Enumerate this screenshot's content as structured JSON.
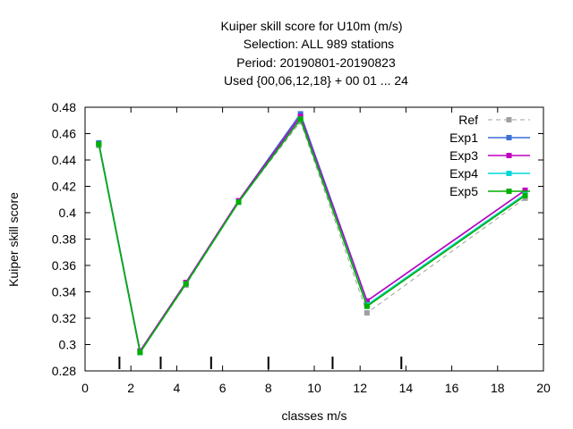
{
  "chart_data": {
    "type": "line",
    "title_lines": [
      "Kuiper skill score  for U10m (m/s)",
      "Selection: ALL     989 stations",
      "Period: 20190801-20190823",
      "Used {00,06,12,18} + 00 01 ... 24"
    ],
    "xlabel": "classes m/s",
    "ylabel": "Kuiper skill score",
    "xlim": [
      0,
      20
    ],
    "ylim": [
      0.28,
      0.48
    ],
    "xticks": [
      "0",
      "2",
      "4",
      "6",
      "8",
      "10",
      "12",
      "14",
      "16",
      "18",
      "20"
    ],
    "yticks": [
      "0.28",
      "0.3",
      "0.32",
      "0.34",
      "0.36",
      "0.38",
      "0.4",
      "0.42",
      "0.44",
      "0.46",
      "0.48"
    ],
    "x": [
      0.6,
      2.4,
      4.4,
      6.7,
      9.4,
      12.3,
      19.2
    ],
    "series": [
      {
        "name": "Ref",
        "color": "#a0a0a0",
        "dashed": true,
        "values": [
          0.451,
          0.294,
          0.345,
          0.408,
          0.469,
          0.324,
          0.411
        ]
      },
      {
        "name": "Exp1",
        "color": "#3a6fd8",
        "dashed": false,
        "values": [
          0.453,
          0.295,
          0.347,
          0.409,
          0.475,
          0.333,
          0.417
        ]
      },
      {
        "name": "Exp3",
        "color": "#c000c0",
        "dashed": false,
        "values": [
          0.452,
          0.295,
          0.347,
          0.409,
          0.473,
          0.333,
          0.417
        ]
      },
      {
        "name": "Exp4",
        "color": "#00d8d8",
        "dashed": false,
        "values": [
          0.452,
          0.294,
          0.346,
          0.408,
          0.471,
          0.33,
          0.414
        ]
      },
      {
        "name": "Exp5",
        "color": "#00b000",
        "dashed": false,
        "values": [
          0.452,
          0.294,
          0.346,
          0.408,
          0.471,
          0.329,
          0.413
        ]
      }
    ],
    "class_markers": [
      1.5,
      3.3,
      5.5,
      8.0,
      10.8,
      13.8
    ],
    "legend_position": "top-right",
    "grid": false
  }
}
